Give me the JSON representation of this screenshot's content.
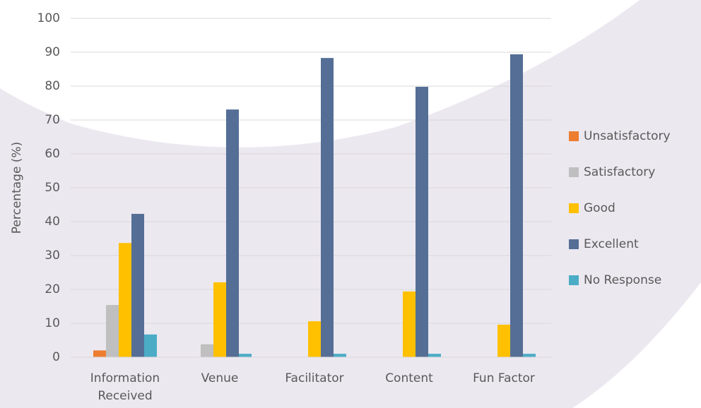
{
  "chart_data": {
    "type": "bar",
    "y_label": "Percentage (%)",
    "categories": [
      "Information Received",
      "Venue",
      "Facilitator",
      "Content",
      "Fun Factor"
    ],
    "series": [
      {
        "name": "Unsatisfactory",
        "color": "#ed7d31",
        "values": [
          2,
          0,
          0,
          0,
          0
        ]
      },
      {
        "name": "Satisfactory",
        "color": "#bfbfbf",
        "values": [
          15.4,
          3.8,
          0,
          0,
          0
        ]
      },
      {
        "name": "Good",
        "color": "#ffc000",
        "values": [
          33.7,
          22.1,
          10.6,
          19.4,
          9.6
        ]
      },
      {
        "name": "Excellent",
        "color": "#546e96",
        "values": [
          42.3,
          73.1,
          88.3,
          79.8,
          89.4
        ]
      },
      {
        "name": "No Response",
        "color": "#4bacc6",
        "values": [
          6.7,
          1,
          1,
          1,
          1
        ]
      }
    ],
    "ylim": [
      0,
      100
    ],
    "yticks": [
      0,
      10,
      20,
      30,
      40,
      50,
      60,
      70,
      80,
      90,
      100
    ],
    "grid": true,
    "legend": "right"
  }
}
